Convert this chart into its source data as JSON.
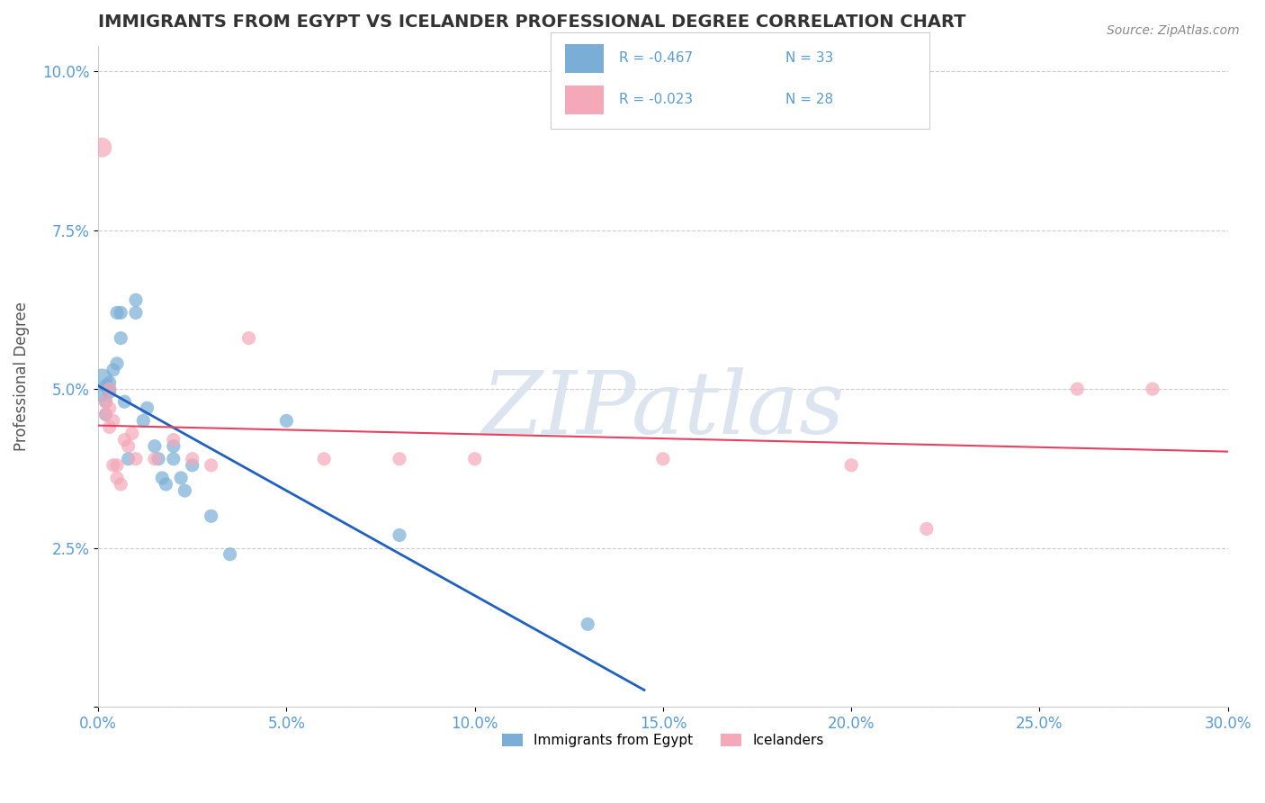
{
  "title": "IMMIGRANTS FROM EGYPT VS ICELANDER PROFESSIONAL DEGREE CORRELATION CHART",
  "source": "Source: ZipAtlas.com",
  "ylabel": "Professional Degree",
  "x_min": 0.0,
  "x_max": 0.3,
  "y_min": 0.0,
  "y_max": 0.104,
  "x_ticks": [
    0.0,
    0.05,
    0.1,
    0.15,
    0.2,
    0.25,
    0.3
  ],
  "x_tick_labels": [
    "0.0%",
    "5.0%",
    "10.0%",
    "15.0%",
    "20.0%",
    "25.0%",
    "30.0%"
  ],
  "y_ticks": [
    0.0,
    0.025,
    0.05,
    0.075,
    0.1
  ],
  "y_tick_labels": [
    "",
    "2.5%",
    "5.0%",
    "7.5%",
    "10.0%"
  ],
  "blue_r": "-0.467",
  "blue_n": "33",
  "pink_r": "-0.023",
  "pink_n": "28",
  "legend_label_blue": "Immigrants from Egypt",
  "legend_label_pink": "Icelanders",
  "blue_color": "#7aaed6",
  "pink_color": "#f4a8b8",
  "blue_line_color": "#2060c0",
  "pink_line_color": "#e84060",
  "blue_dots": [
    [
      0.001,
      0.0515
    ],
    [
      0.001,
      0.049
    ],
    [
      0.002,
      0.0505
    ],
    [
      0.002,
      0.048
    ],
    [
      0.002,
      0.046
    ],
    [
      0.003,
      0.051
    ],
    [
      0.003,
      0.0495
    ],
    [
      0.003,
      0.05
    ],
    [
      0.004,
      0.053
    ],
    [
      0.005,
      0.062
    ],
    [
      0.005,
      0.054
    ],
    [
      0.006,
      0.058
    ],
    [
      0.006,
      0.062
    ],
    [
      0.007,
      0.048
    ],
    [
      0.008,
      0.039
    ],
    [
      0.01,
      0.064
    ],
    [
      0.01,
      0.062
    ],
    [
      0.012,
      0.045
    ],
    [
      0.013,
      0.047
    ],
    [
      0.015,
      0.041
    ],
    [
      0.016,
      0.039
    ],
    [
      0.017,
      0.036
    ],
    [
      0.018,
      0.035
    ],
    [
      0.02,
      0.041
    ],
    [
      0.02,
      0.039
    ],
    [
      0.022,
      0.036
    ],
    [
      0.023,
      0.034
    ],
    [
      0.025,
      0.038
    ],
    [
      0.03,
      0.03
    ],
    [
      0.035,
      0.024
    ],
    [
      0.05,
      0.045
    ],
    [
      0.08,
      0.027
    ],
    [
      0.13,
      0.013
    ]
  ],
  "pink_dots": [
    [
      0.001,
      0.088
    ],
    [
      0.002,
      0.048
    ],
    [
      0.002,
      0.046
    ],
    [
      0.003,
      0.05
    ],
    [
      0.003,
      0.047
    ],
    [
      0.003,
      0.044
    ],
    [
      0.004,
      0.045
    ],
    [
      0.004,
      0.038
    ],
    [
      0.005,
      0.038
    ],
    [
      0.005,
      0.036
    ],
    [
      0.006,
      0.035
    ],
    [
      0.007,
      0.042
    ],
    [
      0.008,
      0.041
    ],
    [
      0.009,
      0.043
    ],
    [
      0.01,
      0.039
    ],
    [
      0.015,
      0.039
    ],
    [
      0.02,
      0.042
    ],
    [
      0.025,
      0.039
    ],
    [
      0.03,
      0.038
    ],
    [
      0.04,
      0.058
    ],
    [
      0.06,
      0.039
    ],
    [
      0.08,
      0.039
    ],
    [
      0.1,
      0.039
    ],
    [
      0.15,
      0.039
    ],
    [
      0.2,
      0.038
    ],
    [
      0.22,
      0.028
    ],
    [
      0.26,
      0.05
    ],
    [
      0.28,
      0.05
    ]
  ],
  "title_color": "#333333",
  "tick_color": "#5b9bd5",
  "axis_label_color": "#555555",
  "grid_color": "#cccccc",
  "watermark_color": "#dce4f0",
  "background_color": "#ffffff"
}
